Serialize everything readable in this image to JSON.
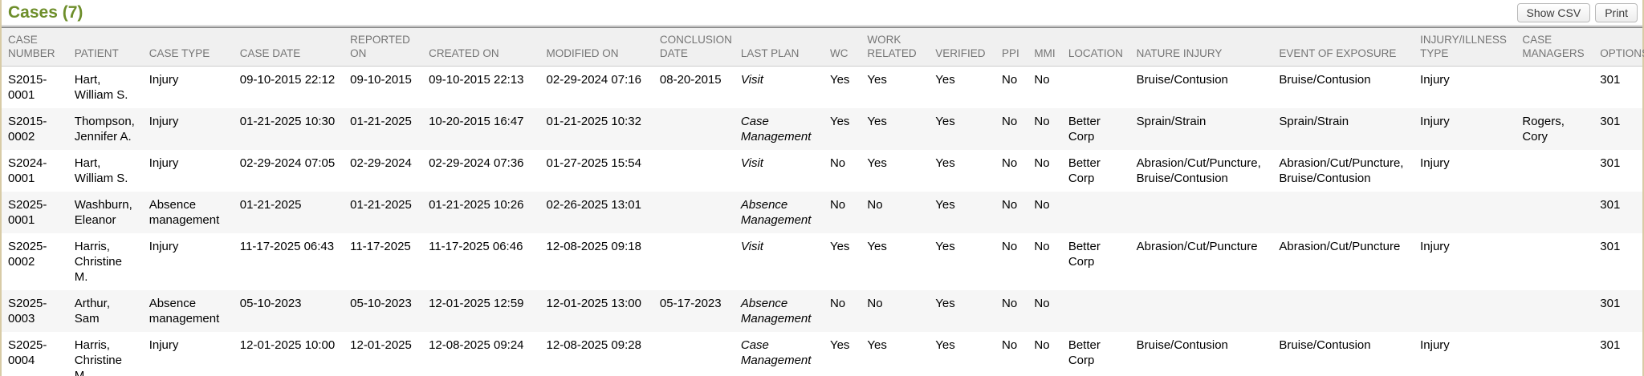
{
  "header": {
    "title": "Cases",
    "count": "(7)",
    "buttons": {
      "show_csv": "Show CSV",
      "print": "Print"
    }
  },
  "colors": {
    "title_green": "#6d8e2a",
    "side_border_tan": "#d8cba6",
    "header_bg": "#f0f0f0",
    "header_text": "#757575",
    "row_stripe": "#f6f6f6"
  },
  "table": {
    "columns": [
      {
        "key": "case_number",
        "label": "CASE NUMBER"
      },
      {
        "key": "patient",
        "label": "PATIENT"
      },
      {
        "key": "case_type",
        "label": "CASE TYPE"
      },
      {
        "key": "case_date",
        "label": "CASE DATE"
      },
      {
        "key": "reported_on",
        "label": "REPORTED ON"
      },
      {
        "key": "created_on",
        "label": "CREATED ON"
      },
      {
        "key": "modified_on",
        "label": "MODIFIED ON"
      },
      {
        "key": "conclusion_date",
        "label": "CONCLUSION DATE"
      },
      {
        "key": "last_plan",
        "label": "LAST PLAN"
      },
      {
        "key": "wc",
        "label": "WC"
      },
      {
        "key": "work_related",
        "label": "WORK RELATED"
      },
      {
        "key": "verified",
        "label": "VERIFIED"
      },
      {
        "key": "ppi",
        "label": "PPI"
      },
      {
        "key": "mmi",
        "label": "MMI"
      },
      {
        "key": "location",
        "label": "LOCATION"
      },
      {
        "key": "nature_injury",
        "label": "NATURE INJURY"
      },
      {
        "key": "event_of_exposure",
        "label": "EVENT OF EXPOSURE"
      },
      {
        "key": "injury_illness_type",
        "label": "INJURY/ILLNESS TYPE"
      },
      {
        "key": "case_managers",
        "label": "CASE MANAGERS"
      },
      {
        "key": "options",
        "label": "OPTIONS"
      }
    ],
    "rows": [
      {
        "case_number": "S2015-0001",
        "patient": "Hart, William S.",
        "case_type": "Injury",
        "case_date": "09-10-2015 22:12",
        "reported_on": "09-10-2015",
        "created_on": "09-10-2015 22:13",
        "modified_on": "02-29-2024 07:16",
        "conclusion_date": "08-20-2015",
        "last_plan": "Visit",
        "wc": "Yes",
        "work_related": "Yes",
        "verified": "Yes",
        "ppi": "No",
        "mmi": "No",
        "location": "",
        "nature_injury": "Bruise/Contusion",
        "event_of_exposure": "Bruise/Contusion",
        "injury_illness_type": "Injury",
        "case_managers": "",
        "options": "301"
      },
      {
        "case_number": "S2015-0002",
        "patient": "Thompson, Jennifer A.",
        "case_type": "Injury",
        "case_date": "01-21-2025 10:30",
        "reported_on": "01-21-2025",
        "created_on": "10-20-2015 16:47",
        "modified_on": "01-21-2025 10:32",
        "conclusion_date": "",
        "last_plan": "Case Management",
        "wc": "Yes",
        "work_related": "Yes",
        "verified": "Yes",
        "ppi": "No",
        "mmi": "No",
        "location": "Better Corp",
        "nature_injury": "Sprain/Strain",
        "event_of_exposure": "Sprain/Strain",
        "injury_illness_type": "Injury",
        "case_managers": "Rogers, Cory",
        "options": "301"
      },
      {
        "case_number": "S2024-0001",
        "patient": "Hart, William S.",
        "case_type": "Injury",
        "case_date": "02-29-2024 07:05",
        "reported_on": "02-29-2024",
        "created_on": "02-29-2024 07:36",
        "modified_on": "01-27-2025 15:54",
        "conclusion_date": "",
        "last_plan": "Visit",
        "wc": "No",
        "work_related": "Yes",
        "verified": "Yes",
        "ppi": "No",
        "mmi": "No",
        "location": "Better Corp",
        "nature_injury": "Abrasion/Cut/Puncture, Bruise/Contusion",
        "event_of_exposure": "Abrasion/Cut/Puncture, Bruise/Contusion",
        "injury_illness_type": "Injury",
        "case_managers": "",
        "options": "301"
      },
      {
        "case_number": "S2025-0001",
        "patient": "Washburn, Eleanor",
        "case_type": "Absence management",
        "case_date": "01-21-2025",
        "reported_on": "01-21-2025",
        "created_on": "01-21-2025 10:26",
        "modified_on": "02-26-2025 13:01",
        "conclusion_date": "",
        "last_plan": "Absence Management",
        "wc": "No",
        "work_related": "No",
        "verified": "Yes",
        "ppi": "No",
        "mmi": "No",
        "location": "",
        "nature_injury": "",
        "event_of_exposure": "",
        "injury_illness_type": "",
        "case_managers": "",
        "options": "301"
      },
      {
        "case_number": "S2025-0002",
        "patient": "Harris, Christine M.",
        "case_type": "Injury",
        "case_date": "11-17-2025 06:43",
        "reported_on": "11-17-2025",
        "created_on": "11-17-2025 06:46",
        "modified_on": "12-08-2025 09:18",
        "conclusion_date": "",
        "last_plan": "Visit",
        "wc": "Yes",
        "work_related": "Yes",
        "verified": "Yes",
        "ppi": "No",
        "mmi": "No",
        "location": "Better Corp",
        "nature_injury": "Abrasion/Cut/Puncture",
        "event_of_exposure": "Abrasion/Cut/Puncture",
        "injury_illness_type": "Injury",
        "case_managers": "",
        "options": "301"
      },
      {
        "case_number": "S2025-0003",
        "patient": "Arthur, Sam",
        "case_type": "Absence management",
        "case_date": "05-10-2023",
        "reported_on": "05-10-2023",
        "created_on": "12-01-2025 12:59",
        "modified_on": "12-01-2025 13:00",
        "conclusion_date": "05-17-2023",
        "last_plan": "Absence Management",
        "wc": "No",
        "work_related": "No",
        "verified": "Yes",
        "ppi": "No",
        "mmi": "No",
        "location": "",
        "nature_injury": "",
        "event_of_exposure": "",
        "injury_illness_type": "",
        "case_managers": "",
        "options": "301"
      },
      {
        "case_number": "S2025-0004",
        "patient": "Harris, Christine M.",
        "case_type": "Injury",
        "case_date": "12-01-2025 10:00",
        "reported_on": "12-01-2025",
        "created_on": "12-08-2025 09:24",
        "modified_on": "12-08-2025 09:28",
        "conclusion_date": "",
        "last_plan": "Case Management",
        "wc": "Yes",
        "work_related": "Yes",
        "verified": "Yes",
        "ppi": "No",
        "mmi": "No",
        "location": "Better Corp",
        "nature_injury": "Bruise/Contusion",
        "event_of_exposure": "Bruise/Contusion",
        "injury_illness_type": "Injury",
        "case_managers": "",
        "options": "301"
      }
    ]
  }
}
